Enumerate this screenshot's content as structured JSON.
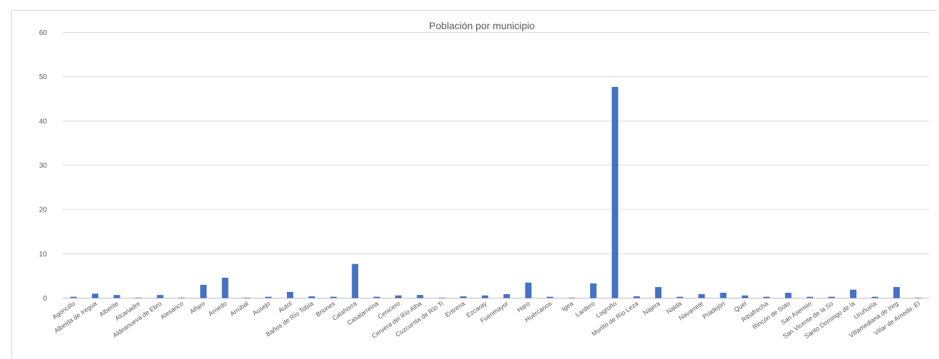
{
  "chart_data": {
    "type": "bar",
    "title": "Población por municipio",
    "xlabel": "",
    "ylabel": "",
    "ylim": [
      0,
      60
    ],
    "yticks": [
      0,
      10,
      20,
      30,
      40,
      50,
      60
    ],
    "grid": true,
    "legend": "none",
    "bar_color": "#4472c4",
    "categories": [
      "Agoncillo",
      "Albelda de Iregua",
      "Alberite",
      "Alcanadre",
      "Aldeanueva de Ebro",
      "Alesanco",
      "Alfaro",
      "Arnedo",
      "Arrúbal",
      "Ausejo",
      "Autol",
      "Baños de Río Tobía",
      "Briones",
      "Calahorra",
      "Casalarreina",
      "Cenicero",
      "Cervera del Río Alha",
      "Cuzcurrita de Río Ti",
      "Entrena",
      "Ezcaray",
      "Fuenmayor",
      "Haro",
      "Huércanos",
      "Igea",
      "Lardero",
      "Logroño",
      "Murillo de Río Leza",
      "Nájera",
      "Nalda",
      "Navarrete",
      "Pradejón",
      "Quel",
      "Ribafrecha",
      "Rincón de Soto",
      "San Asensio",
      "San Vicente de la So",
      "Santo Domingo de la",
      "Uruñuela",
      "Villamediana de Ireg",
      "Villar de Arnedo, El"
    ],
    "values": [
      0.3,
      1.0,
      0.7,
      0.1,
      0.7,
      0.1,
      3.0,
      4.6,
      0.1,
      0.3,
      1.4,
      0.4,
      0.3,
      7.7,
      0.3,
      0.6,
      0.7,
      0.1,
      0.4,
      0.6,
      0.9,
      3.5,
      0.3,
      0.1,
      3.3,
      47.7,
      0.4,
      2.5,
      0.3,
      0.9,
      1.2,
      0.6,
      0.3,
      1.2,
      0.3,
      0.3,
      1.9,
      0.3,
      2.5,
      0.1
    ]
  }
}
